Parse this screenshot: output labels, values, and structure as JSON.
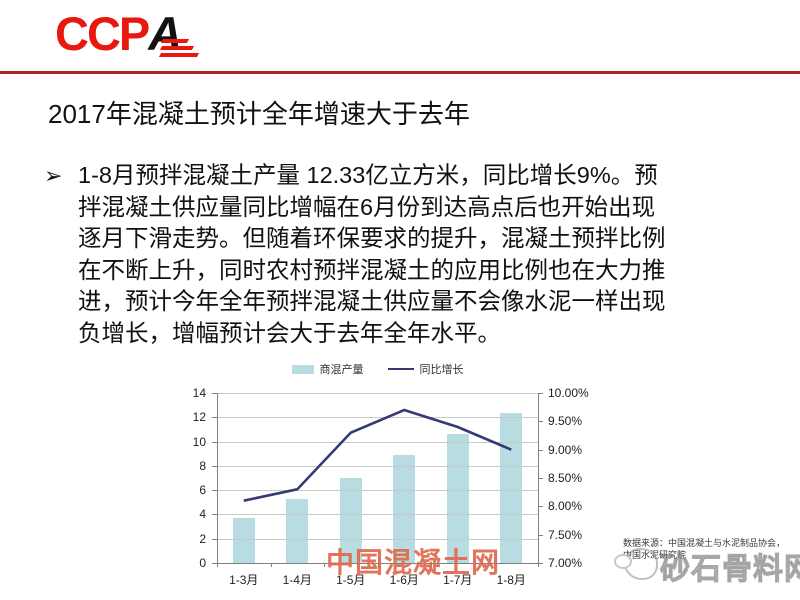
{
  "logo": {
    "red": "CCP",
    "black": "A"
  },
  "title": "2017年混凝土预计全年增速大于去年",
  "bullet": {
    "marker": "➢",
    "lines": [
      "1-8月预拌混凝土产量 12.33亿立方米，同比增长9%。预",
      "拌混凝土供应量同比增幅在6月份到达高点后也开始出现",
      "逐月下滑走势。但随着环保要求的提升，混凝土预拌比例",
      "在不断上升，同时农村预拌混凝土的应用比例也在大力推",
      "进，预计今年全年预拌混凝土供应量不会像水泥一样出现",
      "负增长，增幅预计会大于去年全年水平。"
    ],
    "full_text": "1-8月预拌混凝土产量 12.33亿立方米，同比增长9%。预拌混凝土供应量同比增幅在6月份到达高点后也开始出现逐月下滑走势。但随着环保要求的提升，混凝土预拌比例在不断上升，同时农村预拌混凝土的应用比例也在大力推进，预计今年全年预拌混凝土供应量不会像水泥一样出现负增长，增幅预计会大于去年全年水平。"
  },
  "chart_data": {
    "type": "bar",
    "subtype": "bar+line combo",
    "categories": [
      "1-3月",
      "1-4月",
      "1-5月",
      "1-6月",
      "1-7月",
      "1-8月"
    ],
    "series": [
      {
        "name": "商混产量",
        "type": "bar",
        "axis": "left",
        "values": [
          3.7,
          5.3,
          7.0,
          8.9,
          10.6,
          12.33
        ],
        "color": "#b7dde2"
      },
      {
        "name": "同比增长",
        "type": "line",
        "axis": "right",
        "values": [
          8.1,
          8.3,
          9.3,
          9.7,
          9.4,
          9.0
        ],
        "unit": "%",
        "color": "#353a75"
      }
    ],
    "left_axis": {
      "min": 0,
      "max": 14,
      "step": 2,
      "ticks": [
        "0",
        "2",
        "4",
        "6",
        "8",
        "10",
        "12",
        "14"
      ]
    },
    "right_axis": {
      "min": 7,
      "max": 10,
      "step": 0.5,
      "ticks": [
        "7.00%",
        "7.50%",
        "8.00%",
        "8.50%",
        "9.00%",
        "9.50%",
        "10.00%"
      ]
    },
    "legend_position": "top",
    "grid": true
  },
  "watermarks": {
    "center_red": "中国混凝土网",
    "bottom_right": "砂石骨料网"
  },
  "source_note": {
    "line1": "数据来源：中国混凝土与水泥制品协会，",
    "line2": "中国水泥研究院"
  },
  "colors": {
    "accent_red_rule": "#b02525",
    "logo_red": "#e8170f",
    "bar_fill": "#b7dde2",
    "line_stroke": "#353a75",
    "watermark_red": "#e0684d",
    "watermark_gray": "#969696"
  }
}
